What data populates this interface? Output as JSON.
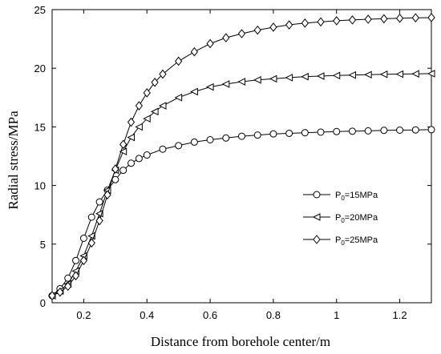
{
  "chart_data": {
    "type": "line",
    "xlabel": "Distance from borehole center/m",
    "ylabel": "Radial stress/MPa",
    "xlim": [
      0.1,
      1.3
    ],
    "ylim": [
      0,
      25
    ],
    "xticks": [
      0.2,
      0.4,
      0.6,
      0.8,
      1,
      1.2
    ],
    "xtick_labels": [
      "0.2",
      "0.4",
      "0.6",
      "0.8",
      "1",
      "1.2"
    ],
    "yticks": [
      0,
      5,
      10,
      15,
      20,
      25
    ],
    "ytick_labels": [
      "0",
      "5",
      "10",
      "15",
      "20",
      "25"
    ],
    "grid": false,
    "legend_position": "right",
    "series": [
      {
        "name": "P0=15MPa",
        "legend_prefix": "P",
        "legend_sub": "0",
        "legend_suffix": "=15MPa",
        "marker": "circle",
        "x": [
          0.1,
          0.125,
          0.15,
          0.175,
          0.2,
          0.225,
          0.25,
          0.275,
          0.3,
          0.325,
          0.35,
          0.375,
          0.4,
          0.45,
          0.5,
          0.55,
          0.6,
          0.65,
          0.7,
          0.75,
          0.8,
          0.85,
          0.9,
          0.95,
          1.0,
          1.05,
          1.1,
          1.15,
          1.2,
          1.25,
          1.3
        ],
        "y": [
          0.6,
          1.2,
          2.1,
          3.6,
          5.5,
          7.3,
          8.6,
          9.6,
          10.5,
          11.3,
          11.9,
          12.3,
          12.6,
          13.1,
          13.4,
          13.7,
          13.9,
          14.05,
          14.2,
          14.3,
          14.4,
          14.45,
          14.5,
          14.55,
          14.6,
          14.63,
          14.66,
          14.7,
          14.72,
          14.74,
          14.76
        ]
      },
      {
        "name": "P0=20MPa",
        "legend_prefix": "P",
        "legend_sub": "0",
        "legend_suffix": "=20MPa",
        "marker": "triangle-left",
        "x": [
          0.1,
          0.125,
          0.15,
          0.175,
          0.2,
          0.225,
          0.25,
          0.275,
          0.3,
          0.325,
          0.35,
          0.375,
          0.4,
          0.425,
          0.45,
          0.5,
          0.55,
          0.6,
          0.65,
          0.7,
          0.75,
          0.8,
          0.85,
          0.9,
          0.95,
          1.0,
          1.05,
          1.1,
          1.15,
          1.2,
          1.25,
          1.3
        ],
        "y": [
          0.6,
          1.0,
          1.6,
          2.7,
          4.0,
          5.7,
          7.6,
          9.6,
          11.3,
          12.9,
          14.1,
          15.0,
          15.7,
          16.3,
          16.8,
          17.5,
          18.0,
          18.4,
          18.65,
          18.85,
          19.0,
          19.1,
          19.2,
          19.28,
          19.33,
          19.38,
          19.42,
          19.45,
          19.48,
          19.5,
          19.52,
          19.54
        ]
      },
      {
        "name": "P0=25MPa",
        "legend_prefix": "P",
        "legend_sub": "0",
        "legend_suffix": "=25MPa",
        "marker": "diamond",
        "x": [
          0.1,
          0.125,
          0.15,
          0.175,
          0.2,
          0.225,
          0.25,
          0.275,
          0.3,
          0.325,
          0.35,
          0.375,
          0.4,
          0.425,
          0.45,
          0.5,
          0.55,
          0.6,
          0.65,
          0.7,
          0.75,
          0.8,
          0.85,
          0.9,
          0.95,
          1.0,
          1.05,
          1.1,
          1.15,
          1.2,
          1.25,
          1.3
        ],
        "y": [
          0.6,
          0.9,
          1.4,
          2.3,
          3.6,
          5.1,
          7.0,
          9.2,
          11.4,
          13.5,
          15.4,
          16.8,
          17.9,
          18.8,
          19.5,
          20.6,
          21.4,
          22.1,
          22.6,
          22.95,
          23.25,
          23.5,
          23.7,
          23.85,
          23.95,
          24.05,
          24.12,
          24.18,
          24.22,
          24.26,
          24.3,
          24.32
        ]
      }
    ]
  }
}
